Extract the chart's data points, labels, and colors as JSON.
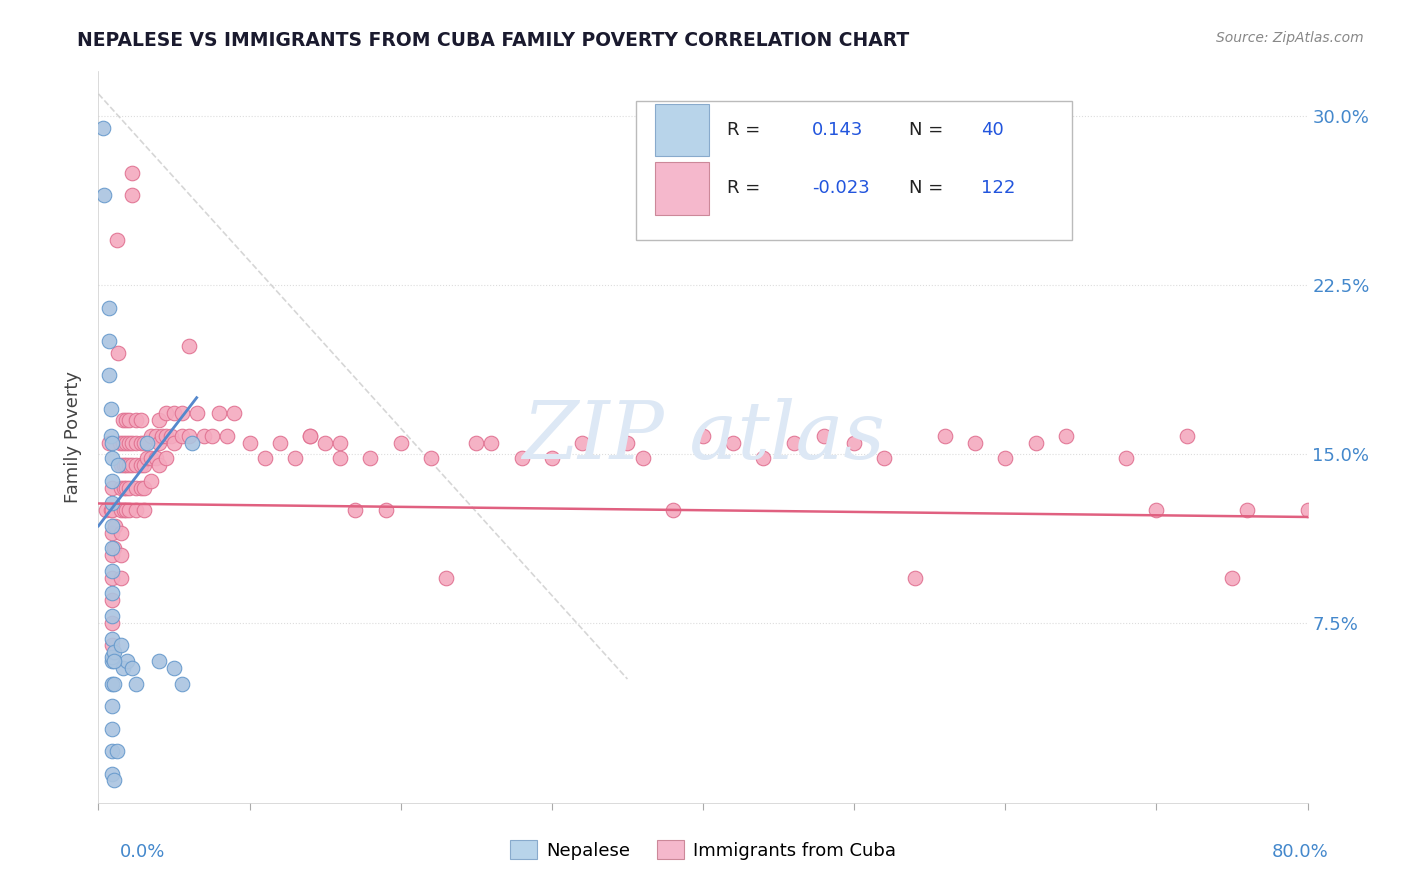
{
  "title": "NEPALESE VS IMMIGRANTS FROM CUBA FAMILY POVERTY CORRELATION CHART",
  "source": "Source: ZipAtlas.com",
  "ylabel": "Family Poverty",
  "yticks_labels": [
    "7.5%",
    "15.0%",
    "22.5%",
    "30.0%"
  ],
  "ytick_vals": [
    0.075,
    0.15,
    0.225,
    0.3
  ],
  "xlim": [
    0.0,
    0.8
  ],
  "ylim": [
    -0.005,
    0.32
  ],
  "nepalese_color": "#aac4e0",
  "nepalese_edge": "#6699cc",
  "cuba_color": "#f4aabf",
  "cuba_edge": "#e07090",
  "nepalese_R": 0.143,
  "nepalese_N": 40,
  "cuba_R": -0.023,
  "cuba_N": 122,
  "background_color": "#ffffff",
  "grid_color": "#dddddd",
  "trend_nep_color": "#5588cc",
  "trend_cuba_color": "#e06080",
  "ref_line_color": "#cccccc",
  "watermark_color": "#dde8f5",
  "legend_box_nep": "#b8d4ea",
  "legend_box_cuba": "#f5b8cc",
  "nepalese_x": [
    0.003,
    0.004,
    0.007,
    0.007,
    0.007,
    0.008,
    0.008,
    0.009,
    0.009,
    0.009,
    0.009,
    0.009,
    0.009,
    0.009,
    0.009,
    0.009,
    0.009,
    0.009,
    0.009,
    0.009,
    0.009,
    0.009,
    0.009,
    0.009,
    0.01,
    0.01,
    0.012,
    0.013,
    0.015,
    0.016,
    0.019,
    0.022,
    0.025,
    0.032,
    0.04,
    0.05,
    0.055,
    0.062,
    0.01,
    0.01
  ],
  "nepalese_y": [
    0.295,
    0.265,
    0.215,
    0.2,
    0.185,
    0.17,
    0.158,
    0.148,
    0.138,
    0.128,
    0.118,
    0.108,
    0.098,
    0.088,
    0.078,
    0.068,
    0.058,
    0.048,
    0.038,
    0.028,
    0.018,
    0.008,
    0.155,
    0.06,
    0.048,
    0.062,
    0.018,
    0.145,
    0.065,
    0.055,
    0.058,
    0.055,
    0.048,
    0.155,
    0.058,
    0.055,
    0.048,
    0.155,
    0.058,
    0.005
  ],
  "cuba_x": [
    0.005,
    0.007,
    0.008,
    0.009,
    0.009,
    0.009,
    0.009,
    0.009,
    0.009,
    0.009,
    0.009,
    0.01,
    0.011,
    0.012,
    0.013,
    0.014,
    0.015,
    0.015,
    0.015,
    0.015,
    0.015,
    0.015,
    0.016,
    0.016,
    0.017,
    0.017,
    0.017,
    0.018,
    0.018,
    0.018,
    0.018,
    0.018,
    0.02,
    0.02,
    0.02,
    0.02,
    0.02,
    0.022,
    0.022,
    0.022,
    0.022,
    0.025,
    0.025,
    0.025,
    0.025,
    0.025,
    0.028,
    0.028,
    0.028,
    0.028,
    0.03,
    0.03,
    0.03,
    0.03,
    0.032,
    0.035,
    0.035,
    0.035,
    0.038,
    0.038,
    0.04,
    0.04,
    0.04,
    0.042,
    0.045,
    0.045,
    0.045,
    0.048,
    0.05,
    0.05,
    0.055,
    0.055,
    0.06,
    0.06,
    0.065,
    0.07,
    0.075,
    0.08,
    0.085,
    0.09,
    0.1,
    0.11,
    0.12,
    0.13,
    0.14,
    0.16,
    0.18,
    0.2,
    0.22,
    0.25,
    0.28,
    0.32,
    0.36,
    0.4,
    0.44,
    0.48,
    0.52,
    0.56,
    0.6,
    0.64,
    0.68,
    0.72,
    0.76,
    0.8,
    0.35,
    0.42,
    0.5,
    0.58,
    0.3,
    0.26,
    0.19,
    0.23,
    0.17,
    0.15,
    0.14,
    0.16,
    0.38,
    0.46,
    0.54,
    0.62,
    0.7,
    0.75
  ],
  "cuba_y": [
    0.125,
    0.155,
    0.125,
    0.135,
    0.125,
    0.115,
    0.105,
    0.095,
    0.085,
    0.075,
    0.065,
    0.108,
    0.118,
    0.245,
    0.195,
    0.155,
    0.145,
    0.135,
    0.125,
    0.115,
    0.105,
    0.095,
    0.165,
    0.155,
    0.145,
    0.135,
    0.125,
    0.165,
    0.155,
    0.145,
    0.135,
    0.125,
    0.165,
    0.155,
    0.145,
    0.135,
    0.125,
    0.275,
    0.265,
    0.155,
    0.145,
    0.165,
    0.155,
    0.145,
    0.135,
    0.125,
    0.165,
    0.155,
    0.145,
    0.135,
    0.155,
    0.145,
    0.135,
    0.125,
    0.148,
    0.158,
    0.148,
    0.138,
    0.158,
    0.148,
    0.165,
    0.155,
    0.145,
    0.158,
    0.168,
    0.158,
    0.148,
    0.158,
    0.168,
    0.155,
    0.168,
    0.158,
    0.198,
    0.158,
    0.168,
    0.158,
    0.158,
    0.168,
    0.158,
    0.168,
    0.155,
    0.148,
    0.155,
    0.148,
    0.158,
    0.155,
    0.148,
    0.155,
    0.148,
    0.155,
    0.148,
    0.155,
    0.148,
    0.158,
    0.148,
    0.158,
    0.148,
    0.158,
    0.148,
    0.158,
    0.148,
    0.158,
    0.125,
    0.125,
    0.155,
    0.155,
    0.155,
    0.155,
    0.148,
    0.155,
    0.125,
    0.095,
    0.125,
    0.155,
    0.158,
    0.148,
    0.125,
    0.155,
    0.095,
    0.155,
    0.125,
    0.095
  ]
}
